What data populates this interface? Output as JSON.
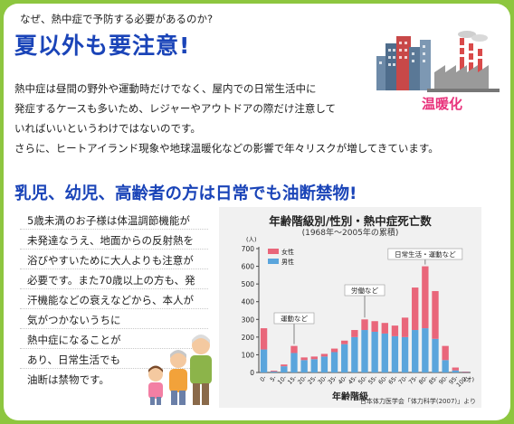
{
  "header": {
    "question": "なぜ、熱中症で予防する必要があるのか?",
    "title": "夏以外も要注意!"
  },
  "intro": {
    "lines": [
      "熱中症は昼間の野外や運動時だけでなく、屋内での日常生活中に",
      "発症するケースも多いため、レジャーやアウトドアの際だけ注意して",
      "いればいいというわけではないのです。",
      "さらに、ヒートアイランド現象や地球温暖化などの影響で年々リスクが増してきています。"
    ]
  },
  "illustration_city": {
    "label": "温暖化",
    "icon": "city-factory-icon"
  },
  "section2": {
    "title": "乳児、幼児、高齢者の方は日常でも油断禁物!",
    "lines": [
      "5歳未満のお子様は体温調節機能が",
      "未発達なうえ、地面からの反射熱を",
      "浴びやすいために大人よりも注意が",
      "必要です。また70歳以上の方も、発",
      "汗機能などの衰えなどから、本人が",
      "気がつかないうちに",
      "熱中症になることが",
      "あり、日常生活でも",
      "油断は禁物です。"
    ],
    "family_icon": "family-icon"
  },
  "chart_data": {
    "type": "bar",
    "title": "年齢階級別/性別・熱中症死亡数",
    "subtitle": "(1968年〜2005年の累積)",
    "xlabel": "年齢階級",
    "ylabel_unit": "(人)",
    "x_unit": "(才)",
    "ylim": [
      0,
      700
    ],
    "yticks": [
      0,
      100,
      200,
      300,
      400,
      500,
      600,
      700
    ],
    "stacked": true,
    "categories": [
      "0-",
      "5-",
      "10-",
      "15-",
      "20-",
      "25-",
      "30-",
      "35-",
      "40-",
      "45-",
      "50-",
      "55-",
      "60-",
      "65-",
      "70-",
      "75-",
      "80-",
      "85-",
      "90-",
      "95-",
      "100-"
    ],
    "category_labels": [
      "0-",
      "5-",
      "10-",
      "15-",
      "20-",
      "25-",
      "30-",
      "35-",
      "40-",
      "45-",
      "50-",
      "55-",
      "60-",
      "65-",
      "70-",
      "75-",
      "80-",
      "85-",
      "90-",
      "95-",
      "100-"
    ],
    "series": [
      {
        "name": "男性",
        "color": "#5aa5dc",
        "values": [
          130,
          5,
          35,
          110,
          70,
          75,
          90,
          115,
          160,
          200,
          240,
          230,
          220,
          205,
          200,
          240,
          250,
          190,
          70,
          12,
          2
        ]
      },
      {
        "name": "女性",
        "color": "#e9667a",
        "values": [
          120,
          5,
          10,
          40,
          15,
          15,
          15,
          20,
          20,
          40,
          60,
          60,
          60,
          60,
          110,
          240,
          350,
          270,
          80,
          16,
          3
        ]
      }
    ],
    "annotations": [
      {
        "text": "運動など",
        "target": "15-"
      },
      {
        "text": "労働など",
        "target": "50-"
      },
      {
        "text": "日常生活・運動など",
        "target": "80-"
      }
    ],
    "legend": "top-left",
    "source": "日本体力医学会「体力科学(2007)」より"
  }
}
